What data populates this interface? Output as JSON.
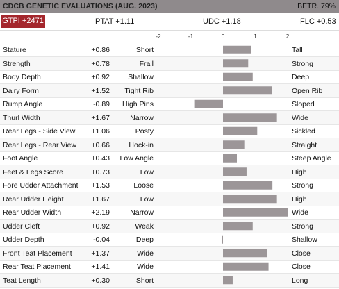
{
  "header": {
    "title": "CDCB GENETIC EVALUATIONS (AUG. 2023)",
    "reliability": "BETR. 79%"
  },
  "indexes": {
    "gtpi": "GTPI +2471",
    "ptat": "PTAT +1.11",
    "udc": "UDC +1.18",
    "flc": "FLC +0.53"
  },
  "colors": {
    "bar": "#9c9698",
    "gtpi_badge": "#a4262c",
    "header_bg": "#8f8a8c"
  },
  "chart_data": {
    "type": "bar",
    "orientation": "horizontal",
    "xlim": [
      -2,
      2
    ],
    "ticks": [
      "-2",
      "-1",
      "0",
      "1",
      "2"
    ],
    "tick_values": [
      -2,
      -1,
      0,
      1,
      2
    ],
    "grid": false,
    "traits": [
      {
        "name": "Stature",
        "value": 0.86,
        "label": "+0.86",
        "low": "Short",
        "high": "Tall"
      },
      {
        "name": "Strength",
        "value": 0.78,
        "label": "+0.78",
        "low": "Frail",
        "high": "Strong"
      },
      {
        "name": "Body Depth",
        "value": 0.92,
        "label": "+0.92",
        "low": "Shallow",
        "high": "Deep"
      },
      {
        "name": "Dairy Form",
        "value": 1.52,
        "label": "+1.52",
        "low": "Tight Rib",
        "high": "Open Rib"
      },
      {
        "name": "Rump Angle",
        "value": -0.89,
        "label": "-0.89",
        "low": "High Pins",
        "high": "Sloped"
      },
      {
        "name": "Thurl Width",
        "value": 1.67,
        "label": "+1.67",
        "low": "Narrow",
        "high": "Wide"
      },
      {
        "name": "Rear Legs - Side View",
        "value": 1.06,
        "label": "+1.06",
        "low": "Posty",
        "high": "Sickled"
      },
      {
        "name": "Rear Legs - Rear View",
        "value": 0.66,
        "label": "+0.66",
        "low": "Hock-in",
        "high": "Straight"
      },
      {
        "name": "Foot Angle",
        "value": 0.43,
        "label": "+0.43",
        "low": "Low Angle",
        "high": "Steep Angle"
      },
      {
        "name": "Feet & Legs Score",
        "value": 0.73,
        "label": "+0.73",
        "low": "Low",
        "high": "High"
      },
      {
        "name": "Fore Udder Attachment",
        "value": 1.53,
        "label": "+1.53",
        "low": "Loose",
        "high": "Strong"
      },
      {
        "name": "Rear Udder Height",
        "value": 1.67,
        "label": "+1.67",
        "low": "Low",
        "high": "High"
      },
      {
        "name": "Rear Udder Width",
        "value": 2.19,
        "label": "+2.19",
        "low": "Narrow",
        "high": "Wide"
      },
      {
        "name": "Udder Cleft",
        "value": 0.92,
        "label": "+0.92",
        "low": "Weak",
        "high": "Strong"
      },
      {
        "name": "Udder Depth",
        "value": -0.04,
        "label": "-0.04",
        "low": "Deep",
        "high": "Shallow"
      },
      {
        "name": "Front Teat Placement",
        "value": 1.37,
        "label": "+1.37",
        "low": "Wide",
        "high": "Close"
      },
      {
        "name": "Rear Teat Placement",
        "value": 1.41,
        "label": "+1.41",
        "low": "Wide",
        "high": "Close"
      },
      {
        "name": "Teat Length",
        "value": 0.3,
        "label": "+0.30",
        "low": "Short",
        "high": "Long"
      }
    ]
  }
}
